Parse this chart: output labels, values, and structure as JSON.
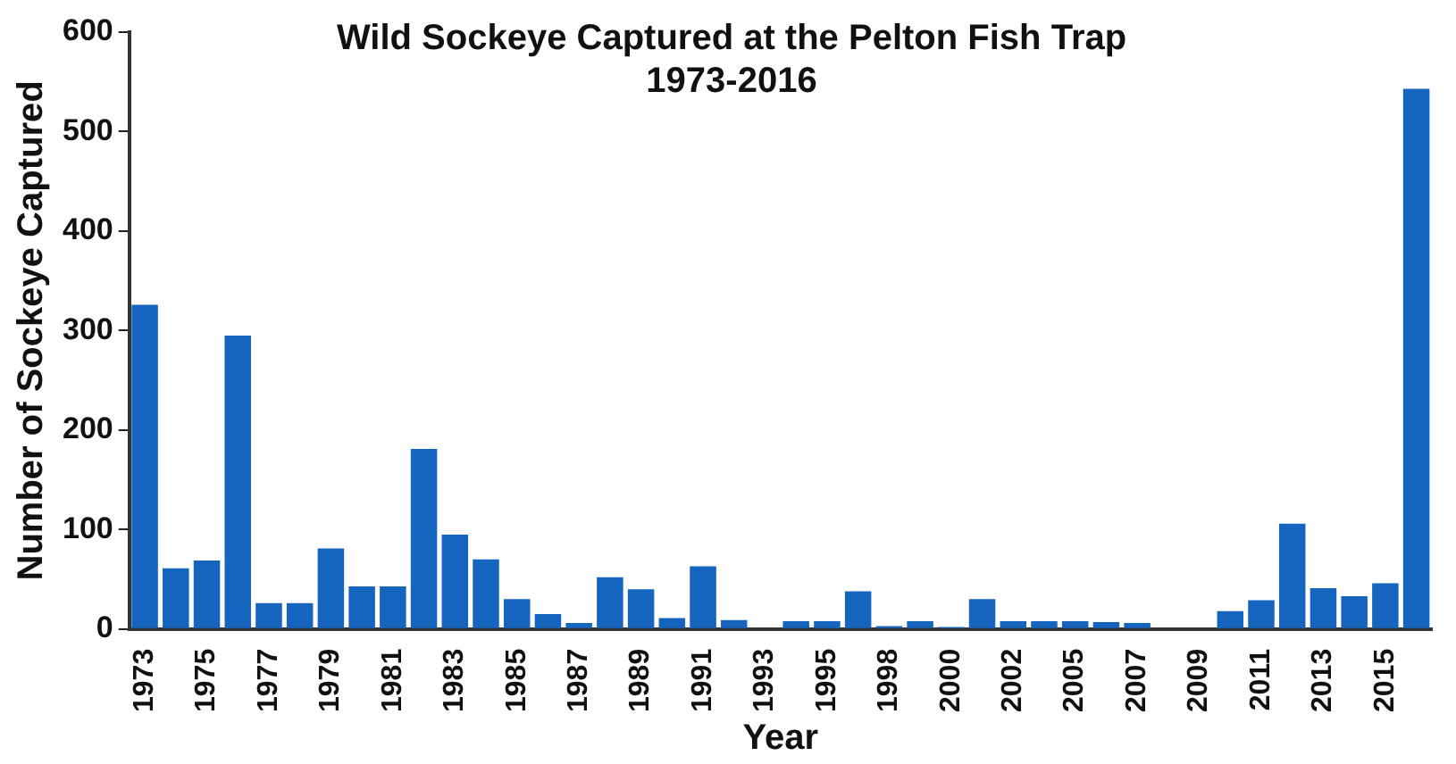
{
  "chart_data": {
    "type": "bar",
    "title": "Wild Sockeye Captured at the Pelton Fish Trap\n1973-2016",
    "xlabel": "Year",
    "ylabel": "Number of Sockeye Captured",
    "categories": [
      "1973",
      null,
      "1975",
      null,
      "1977",
      null,
      "1979",
      null,
      "1981",
      null,
      "1983",
      null,
      "1985",
      null,
      "1987",
      null,
      "1989",
      null,
      "1991",
      null,
      "1993",
      null,
      "1995",
      null,
      "1998",
      null,
      "2000",
      null,
      "2002",
      null,
      "2005",
      null,
      "2007",
      null,
      "2009",
      null,
      "2011",
      null,
      "2013",
      null,
      "2015",
      null
    ],
    "values": [
      326,
      61,
      69,
      295,
      26,
      26,
      81,
      43,
      43,
      181,
      95,
      70,
      30,
      15,
      6,
      52,
      40,
      11,
      63,
      9,
      0,
      8,
      8,
      38,
      3,
      8,
      2,
      30,
      8,
      8,
      8,
      7,
      6,
      0,
      0,
      18,
      29,
      106,
      41,
      33,
      46,
      543
    ],
    "color": "#1565be",
    "ylim": [
      0,
      600
    ],
    "yticks": [
      0,
      100,
      200,
      300,
      400,
      500,
      600
    ],
    "grid": false,
    "legend": false
  }
}
